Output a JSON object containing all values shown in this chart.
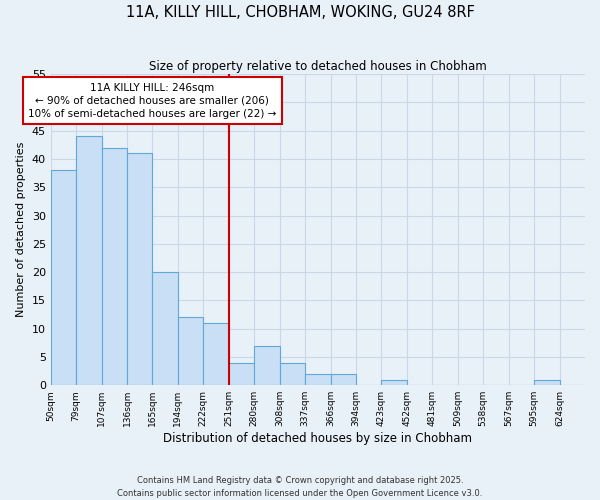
{
  "title": "11A, KILLY HILL, CHOBHAM, WOKING, GU24 8RF",
  "subtitle": "Size of property relative to detached houses in Chobham",
  "xlabel": "Distribution of detached houses by size in Chobham",
  "ylabel": "Number of detached properties",
  "bin_labels": [
    "50sqm",
    "79sqm",
    "107sqm",
    "136sqm",
    "165sqm",
    "194sqm",
    "222sqm",
    "251sqm",
    "280sqm",
    "308sqm",
    "337sqm",
    "366sqm",
    "394sqm",
    "423sqm",
    "452sqm",
    "481sqm",
    "509sqm",
    "538sqm",
    "567sqm",
    "595sqm",
    "624sqm"
  ],
  "bar_values": [
    38,
    44,
    42,
    41,
    20,
    12,
    11,
    4,
    7,
    4,
    2,
    2,
    0,
    1,
    0,
    0,
    0,
    0,
    0,
    1,
    0
  ],
  "bar_color": "#c8dff5",
  "bar_edge_color": "#5fa8d8",
  "vline_color": "#cc0000",
  "annotation_line1": "11A KILLY HILL: 246sqm",
  "annotation_line2": "← 90% of detached houses are smaller (206)",
  "annotation_line3": "10% of semi-detached houses are larger (22) →",
  "annotation_box_edge_color": "#cc0000",
  "ylim": [
    0,
    55
  ],
  "yticks": [
    0,
    5,
    10,
    15,
    20,
    25,
    30,
    35,
    40,
    45,
    50,
    55
  ],
  "grid_color": "#c8d8e8",
  "background_color": "#e8f0f8",
  "footer_line1": "Contains HM Land Registry data © Crown copyright and database right 2025.",
  "footer_line2": "Contains public sector information licensed under the Open Government Licence v3.0."
}
